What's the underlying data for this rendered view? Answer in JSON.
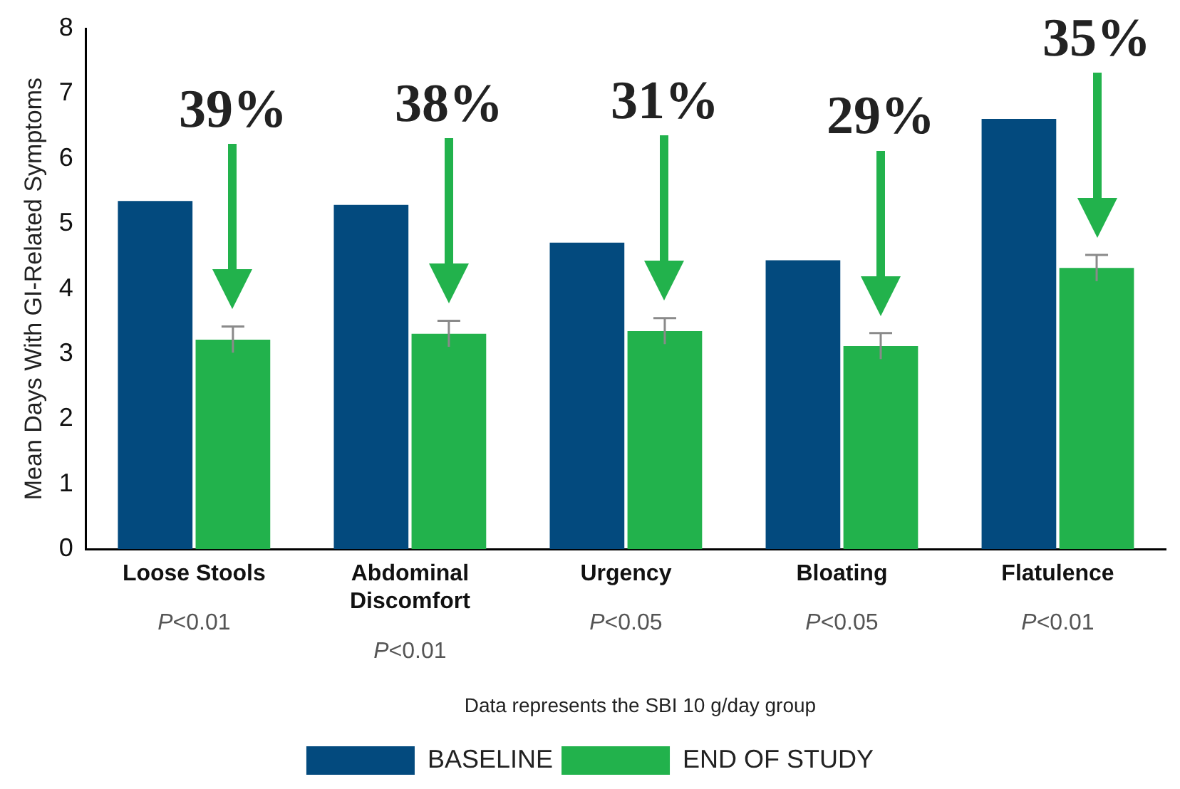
{
  "chart_data": {
    "type": "bar",
    "ylabel": "Mean Days With GI-Related Symptoms",
    "categories": [
      "Loose Stools",
      "Abdominal Discomfort",
      "Urgency",
      "Bloating",
      "Flatulence"
    ],
    "series": [
      {
        "name": "BASELINE",
        "color": "#034a7e",
        "values": [
          5.35,
          5.29,
          4.71,
          4.44,
          6.61
        ]
      },
      {
        "name": "END OF STUDY",
        "color": "#22b24c",
        "values": [
          3.22,
          3.31,
          3.35,
          3.12,
          4.32
        ],
        "errors": [
          0.2,
          0.2,
          0.2,
          0.2,
          0.2
        ]
      }
    ],
    "ylim": [
      0,
      8
    ],
    "yticks": [
      0,
      1,
      2,
      3,
      4,
      5,
      6,
      7,
      8
    ],
    "grid": false,
    "legend": "bottom",
    "annotations": [
      "39%",
      "38%",
      "31%",
      "29%",
      "35%",
      "P<0.01",
      "P<0.01",
      "P<0.05",
      "P<0.05",
      "P<0.01",
      "Data represents the SBI 10 g/day group"
    ]
  }
}
